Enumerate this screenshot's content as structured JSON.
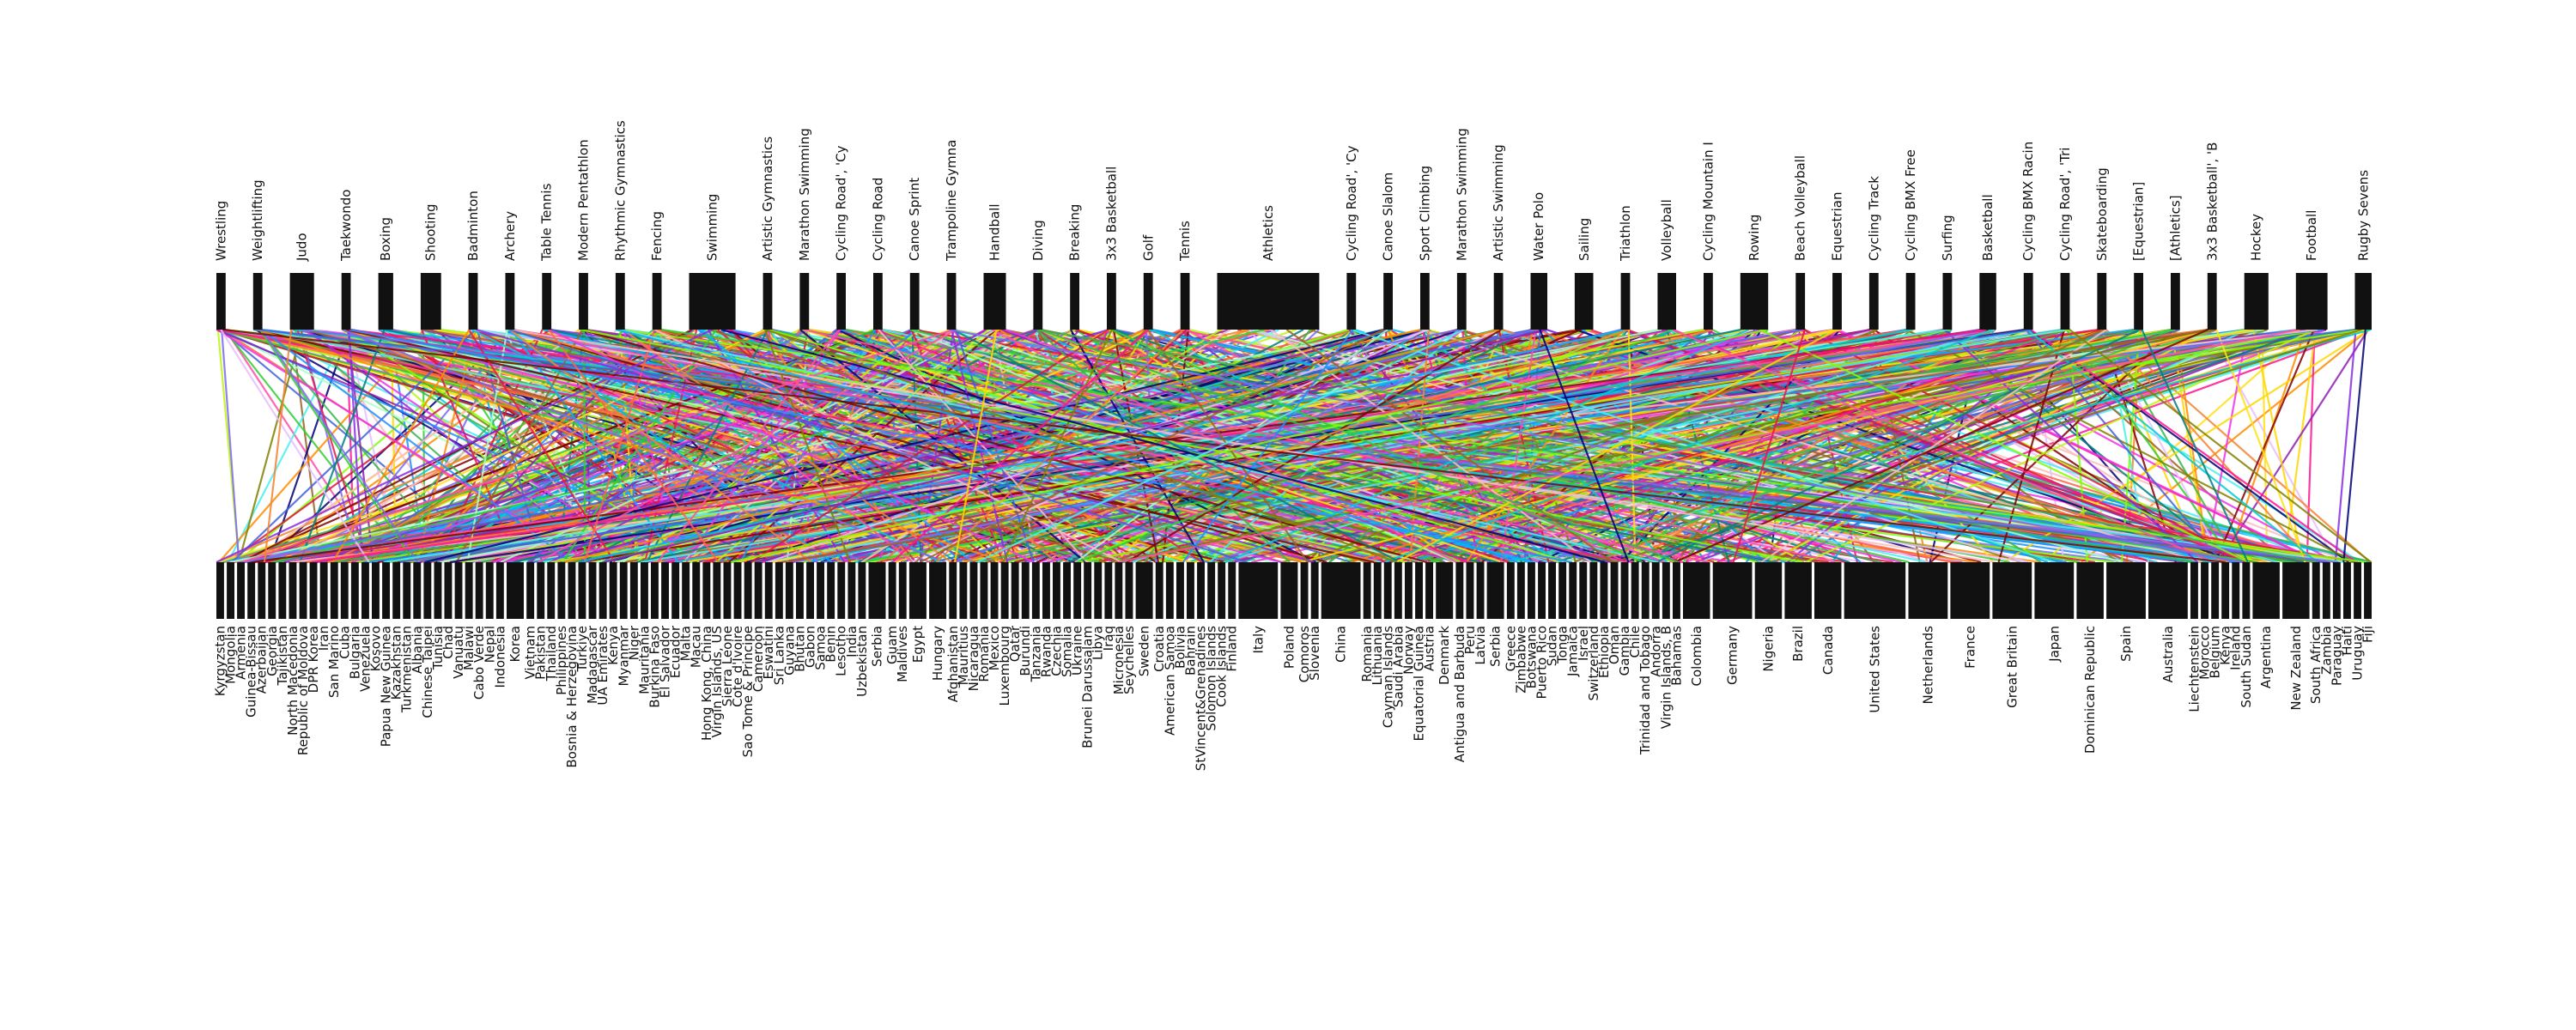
{
  "diagram": {
    "type": "bipartite-graph",
    "top_nodes": [
      "Wrestling",
      "Weightlifting",
      "Judo",
      "Taekwondo",
      "Boxing",
      "Shooting",
      "Badminton",
      "Archery",
      "Table Tennis",
      "Modern Pentathlon",
      "Rhythmic Gymnastics",
      "Fencing",
      "Swimming",
      "Artistic Gymnastics",
      "Marathon Swimming",
      "Cycling Road', 'Cy",
      "Cycling Road",
      "Canoe Sprint",
      "Trampoline Gymna",
      "Handball",
      "Diving",
      "Breaking",
      "3x3 Basketball",
      "Golf",
      "Tennis",
      "Athletics",
      "Cycling Road', 'Cy",
      "Canoe Slalom",
      "Sport Climbing",
      "Marathon Swimming",
      "Artistic Swimming",
      "Water Polo",
      "Sailing",
      "Triathlon",
      "Volleyball",
      "Cycling Mountain I",
      "Rowing",
      "Beach Volleyball",
      "Equestrian",
      "Cycling Track",
      "Cycling BMX Free",
      "Surfing",
      "Basketball",
      "Cycling BMX Racin",
      "Cycling Road', 'Tri",
      "Skateboarding",
      "[Equestrian]",
      "[Athletics]",
      "3x3 Basketball', 'B",
      "Hockey",
      "Football",
      "Rugby Sevens"
    ],
    "bottom_nodes": [
      "Kyrgyzstan",
      "Mongolia",
      "Armenia",
      "Guinea-Bissau",
      "Azerbaijan",
      "Georgia",
      "Tajikistan",
      "North Macedonia",
      "Republic of Moldova",
      "DPR Korea",
      "Iran",
      "San Marino",
      "Cuba",
      "Bulgaria",
      "Venezuela",
      "Kosovo",
      "Papua New Guinea",
      "Kazakhstan",
      "Turkmenistan",
      "Albania",
      "Chinese Taipei",
      "Tunisia",
      "Chad",
      "Vanuatu",
      "Malawi",
      "Cabo Verde",
      "Nepal",
      "Indonesia",
      "Korea",
      "Vietnam",
      "Pakistan",
      "Thailand",
      "Philippines",
      "Bosnia & Herzegovina",
      "Turkiye",
      "Madagascar",
      "UA Emirates",
      "Kenya",
      "Myanmar",
      "Niger",
      "Mauritania",
      "Burkina Faso",
      "El Salvador",
      "Ecuador",
      "Malta",
      "Macau",
      "Hong Kong, China",
      "Virgin Islands, US",
      "Sierra Leone",
      "Cote d'Ivoire",
      "Sao Tome & Principe",
      "Cameroon",
      "Eswatini",
      "Sri Lanka",
      "Guyana",
      "Bhutan",
      "Gabon",
      "Samoa",
      "Benin",
      "Lesotho",
      "India",
      "Uzbekistan",
      "Serbia",
      "Guam",
      "Maldives",
      "Egypt",
      "Hungary",
      "Afghanistan",
      "Mauritius",
      "Nicaragua",
      "Romania",
      "Mexico",
      "Luxembourg",
      "Qatar",
      "Burundi",
      "Tanzania",
      "Rwanda",
      "Czechia",
      "Somalia",
      "Ukraine",
      "Brunei Darussalam",
      "Libya",
      "Iraq",
      "Micronesia",
      "Seychelles",
      "Sweden",
      "Croatia",
      "American Samoa",
      "Bolivia",
      "Bahrain",
      "StVincent&Grenadines",
      "Solomon Islands",
      "Cook Islands",
      "Finland",
      "Italy",
      "Poland",
      "Comoros",
      "Slovenia",
      "China",
      "Romania",
      "Lithuania",
      "Cayman Islands",
      "Saudi Arabia",
      "Norway",
      "Equatorial Guinea",
      "Austria",
      "Denmark",
      "Antigua and Barbuda",
      "Peru",
      "Latvia",
      "Serbia",
      "Greece",
      "Zimbabwe",
      "Botswana",
      "Puerto Rico",
      "Sudan",
      "Tonga",
      "Jamaica",
      "Israel",
      "Switzerland",
      "Ethiopia",
      "Oman",
      "Gambia",
      "Chile",
      "Trinidad and Tobago",
      "Andorra",
      "Virgin Islands, B",
      "Bahamas",
      "Colombia",
      "Germany",
      "Nigeria",
      "Brazil",
      "Canada",
      "United States",
      "Netherlands",
      "France",
      "Great Britain",
      "Japan",
      "Dominican Republic",
      "Spain",
      "Australia",
      "Liechtenstein",
      "Morocco",
      "Belgium",
      "Kenya",
      "Ireland",
      "South Sudan",
      "Argentina",
      "New Zealand",
      "South Africa",
      "Zambia",
      "Paraguay",
      "Haiti",
      "Uruguay",
      "Fiji"
    ]
  }
}
